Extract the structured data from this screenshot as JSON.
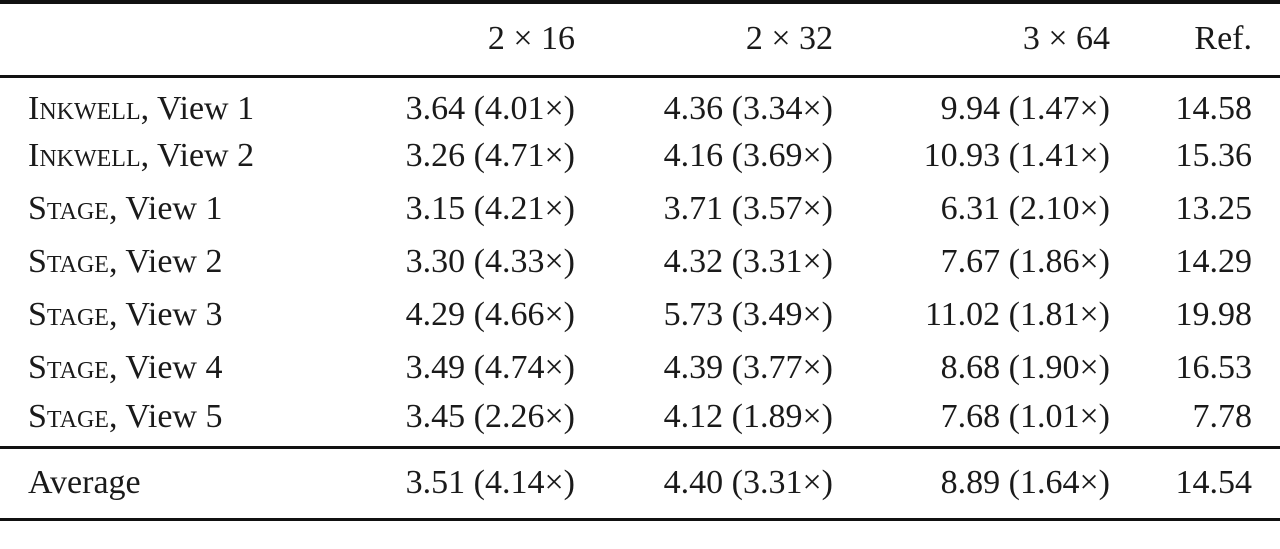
{
  "table": {
    "header": [
      "2 × 16",
      "2 × 32",
      "3 × 64",
      "Ref."
    ],
    "rows": [
      {
        "name": "Inkwell",
        "suffix": ", View 1",
        "cells": [
          "3.64 (4.01×)",
          "4.36 (3.34×)",
          "9.94 (1.47×)",
          "14.58"
        ]
      },
      {
        "name": "Inkwell",
        "suffix": ", View 2",
        "cells": [
          "3.26 (4.71×)",
          "4.16 (3.69×)",
          "10.93 (1.41×)",
          "15.36"
        ]
      },
      {
        "name": "Stage",
        "suffix": ", View 1",
        "cells": [
          "3.15 (4.21×)",
          "3.71 (3.57×)",
          "6.31 (2.10×)",
          "13.25"
        ]
      },
      {
        "name": "Stage",
        "suffix": ", View 2",
        "cells": [
          "3.30 (4.33×)",
          "4.32 (3.31×)",
          "7.67 (1.86×)",
          "14.29"
        ]
      },
      {
        "name": "Stage",
        "suffix": ", View 3",
        "cells": [
          "4.29 (4.66×)",
          "5.73 (3.49×)",
          "11.02 (1.81×)",
          "19.98"
        ]
      },
      {
        "name": "Stage",
        "suffix": ", View 4",
        "cells": [
          "3.49 (4.74×)",
          "4.39 (3.77×)",
          "8.68 (1.90×)",
          "16.53"
        ]
      },
      {
        "name": "Stage",
        "suffix": ", View 5",
        "cells": [
          "3.45 (2.26×)",
          "4.12 (1.89×)",
          "7.68 (1.01×)",
          "7.78"
        ]
      }
    ],
    "footer": {
      "label": "Average",
      "cells": [
        "3.51 (4.14×)",
        "4.40 (3.31×)",
        "8.89 (1.64×)",
        "14.54"
      ]
    }
  }
}
